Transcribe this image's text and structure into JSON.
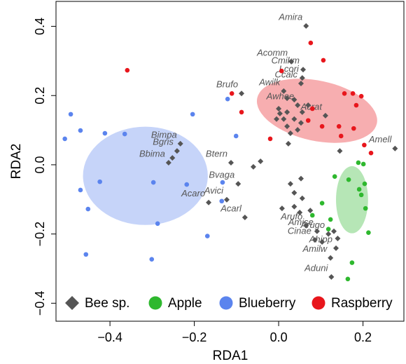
{
  "chart_data": {
    "type": "scatter",
    "x_label": "RDA1",
    "y_label": "RDA2",
    "xlim": [
      -0.528,
      0.297
    ],
    "ylim": [
      -0.452,
      0.472
    ],
    "xticks": [
      {
        "value": -0.4,
        "label": "−0.4"
      },
      {
        "value": -0.2,
        "label": "−0.2"
      },
      {
        "value": 0,
        "label": "0.0"
      },
      0.2
    ],
    "yticks": [
      {
        "value": -0.4,
        "label": "−0.4"
      },
      {
        "value": -0.2,
        "label": "−0.2"
      },
      {
        "value": 0,
        "label": "0.0"
      },
      0.2,
      0.4
    ],
    "grid": false,
    "legend": "bottom",
    "series": [
      {
        "name": "Bee sp.",
        "color": "#555555",
        "marker": "diamond",
        "x": [
          0.065,
          0.03,
          0.058,
          0.056,
          0.053,
          -0.088,
          0.012,
          0.02,
          0.037,
          0.045,
          0.0,
          0.003,
          0.02,
          0.012,
          -0.005,
          0.056,
          0.037,
          0.02,
          0.053,
          0.045,
          0.028,
          0.023,
          0.07,
          0.111,
          -0.241,
          -0.252,
          -0.261,
          -0.113,
          -0.096,
          -0.123,
          -0.08,
          -0.166,
          -0.043,
          -0.06,
          0.276,
          0.145,
          0.028,
          0.053,
          0.037,
          0.056,
          0.008,
          0.037,
          0.05,
          0.065,
          0.075,
          0.091,
          0.086,
          0.103,
          0.118,
          0.131,
          0.14,
          0.136,
          0.123,
          0.125,
          -0.233
        ],
        "y": [
          0.401,
          0.298,
          0.275,
          0.251,
          0.235,
          0.206,
          0.213,
          0.192,
          0.188,
          0.172,
          0.162,
          0.148,
          0.152,
          0.132,
          0.132,
          0.152,
          0.132,
          0.111,
          0.121,
          0.101,
          0.091,
          0.061,
          0.172,
          0.142,
          0.04,
          0.02,
          0.006,
          0.006,
          -0.055,
          -0.101,
          -0.152,
          -0.109,
          0.01,
          -0.006,
          0.047,
          0.04,
          -0.055,
          -0.04,
          -0.081,
          -0.097,
          -0.126,
          -0.121,
          -0.138,
          -0.176,
          -0.132,
          -0.192,
          -0.217,
          -0.223,
          -0.2,
          -0.192,
          -0.213,
          -0.241,
          -0.269,
          -0.324,
          0.061
        ],
        "labels": [
          "Amira",
          "Acomm",
          "Cmikm",
          "Lcori",
          "Ccalc",
          "Brufo",
          "Awilk",
          null,
          null,
          "Awhee",
          null,
          null,
          null,
          null,
          null,
          null,
          null,
          null,
          null,
          null,
          null,
          null,
          null,
          "Acrat",
          "Bgris",
          null,
          "Bbima",
          "Btern",
          "Bvaga",
          "Avici",
          "Acarl",
          "Acaro",
          null,
          null,
          "Amell",
          null,
          null,
          null,
          null,
          null,
          null,
          null,
          null,
          "Arufo",
          null,
          "Amise",
          "Cinae",
          null,
          "Arugo",
          null,
          null,
          "Ahipp",
          "Amilw",
          "Aduni",
          "Bimpa"
        ]
      },
      {
        "name": "Apple",
        "color": "#2eb82e",
        "marker": "circle",
        "x": [
          0.189,
          0.201,
          0.133,
          0.166,
          0.204,
          0.191,
          0.196,
          0.206,
          0.103,
          0.08,
          0.123,
          0.118,
          0.213,
          0.174,
          0.164
        ],
        "y": [
          0.006,
          0.002,
          -0.034,
          -0.043,
          -0.055,
          -0.071,
          -0.087,
          -0.126,
          -0.111,
          -0.146,
          -0.158,
          -0.186,
          -0.196,
          -0.283,
          -0.33
        ],
        "ellipse": {
          "cx": 0.174,
          "cy": -0.101,
          "rx": 0.038,
          "ry": 0.097,
          "angle": 0
        }
      },
      {
        "name": "Blueberry",
        "color": "#5b84ee",
        "marker": "circle",
        "x": [
          -0.493,
          -0.47,
          -0.507,
          -0.412,
          -0.365,
          -0.204,
          -0.121,
          -0.101,
          -0.47,
          -0.424,
          -0.452,
          -0.297,
          -0.218,
          -0.287,
          -0.135,
          -0.169,
          -0.457,
          -0.301,
          -0.133
        ],
        "y": [
          0.146,
          0.099,
          0.075,
          0.091,
          0.089,
          0.146,
          0.19,
          0.083,
          -0.073,
          -0.049,
          -0.128,
          -0.051,
          -0.057,
          -0.17,
          -0.105,
          -0.206,
          -0.259,
          -0.273,
          -0.051
        ],
        "ellipse": {
          "cx": -0.316,
          "cy": -0.032,
          "rx": 0.148,
          "ry": 0.142,
          "angle": 0
        }
      },
      {
        "name": "Raspberry",
        "color": "#e8161c",
        "marker": "circle",
        "x": [
          -0.359,
          0.076,
          0.106,
          0.007,
          -0.111,
          -0.088,
          -0.02,
          0.156,
          0.176,
          0.196,
          0.184,
          0.07,
          0.103,
          0.143,
          0.148,
          0.178,
          0.203,
          0.219,
          0.08
        ],
        "y": [
          0.273,
          0.352,
          0.302,
          0.271,
          0.206,
          0.152,
          0.075,
          0.206,
          0.206,
          0.198,
          0.172,
          0.128,
          0.111,
          0.111,
          0.083,
          0.105,
          0.057,
          0.034,
          0.162
        ],
        "ellipse": {
          "cx": 0.091,
          "cy": 0.156,
          "rx": 0.145,
          "ry": 0.087,
          "angle": -12
        }
      }
    ]
  }
}
